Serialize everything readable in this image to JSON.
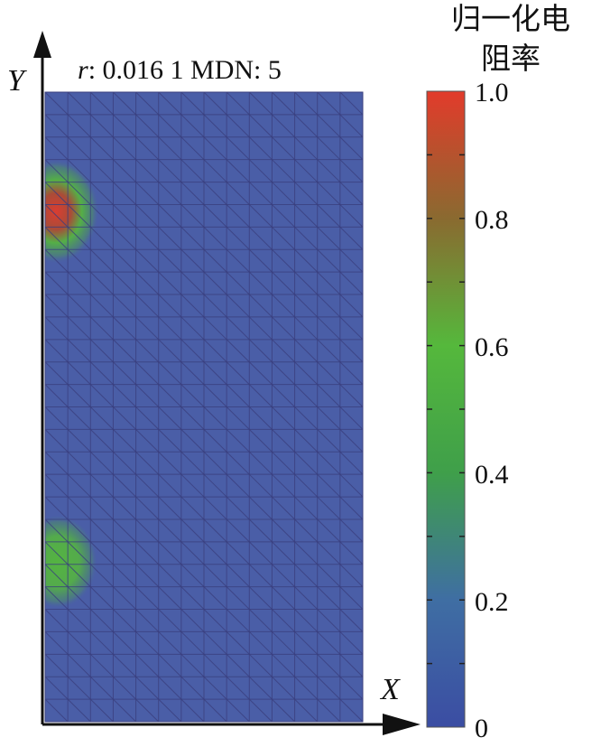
{
  "figure": {
    "y_axis_label": "Y",
    "x_axis_label": "X",
    "annotation": {
      "r_symbol": "r",
      "text": ": 0.016 1 MDN: 5"
    },
    "colorbar": {
      "title_line1": "归一化电",
      "title_line2": "阻率",
      "tick_labels": [
        "1.0",
        "0.8",
        "0.6",
        "0.4",
        "0.2",
        "0"
      ],
      "tick_values": [
        1.0,
        0.8,
        0.6,
        0.4,
        0.2,
        0.0
      ],
      "minor_tick_values": [
        0.9,
        0.7,
        0.5,
        0.3,
        0.1
      ],
      "color_stops": [
        {
          "value": 0.0,
          "color": "#3b4da3"
        },
        {
          "value": 0.2,
          "color": "#3f6ea3"
        },
        {
          "value": 0.4,
          "color": "#3f9f4a"
        },
        {
          "value": 0.6,
          "color": "#55b83c"
        },
        {
          "value": 0.8,
          "color": "#8a6a30"
        },
        {
          "value": 1.0,
          "color": "#e23b2b"
        }
      ]
    },
    "mesh": {
      "columns": 14,
      "rows": 28,
      "background_color": "#4a5ea7",
      "line_color": "#3a3f7e"
    },
    "anomalies": [
      {
        "label": "upper-anomaly",
        "peak_value": 0.9
      },
      {
        "label": "lower-anomaly",
        "peak_value": 0.55
      }
    ]
  }
}
